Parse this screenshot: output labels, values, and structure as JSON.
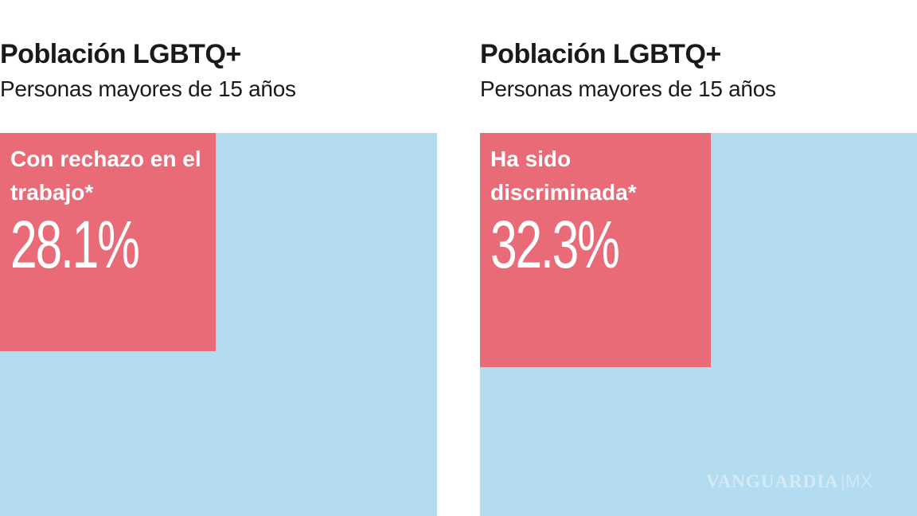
{
  "chart_data": [
    {
      "type": "treemap-area",
      "title": "Población LGBTQ+",
      "subtitle": "Personas mayores de 15 años",
      "label": "Con rechazo en el trabajo*",
      "value": 28.1,
      "value_label": "28.1%",
      "colors": {
        "highlight": "#e96b78",
        "rest": "#b3dcf0"
      }
    },
    {
      "type": "treemap-area",
      "title": "Población LGBTQ+",
      "subtitle": "Personas mayores de 15 años",
      "label": "Ha sido discriminada*",
      "value": 32.3,
      "value_label": "32.3%",
      "colors": {
        "highlight": "#e96b78",
        "rest": "#b3dcf0"
      }
    }
  ],
  "watermark": "VANGUARDIA|MX"
}
